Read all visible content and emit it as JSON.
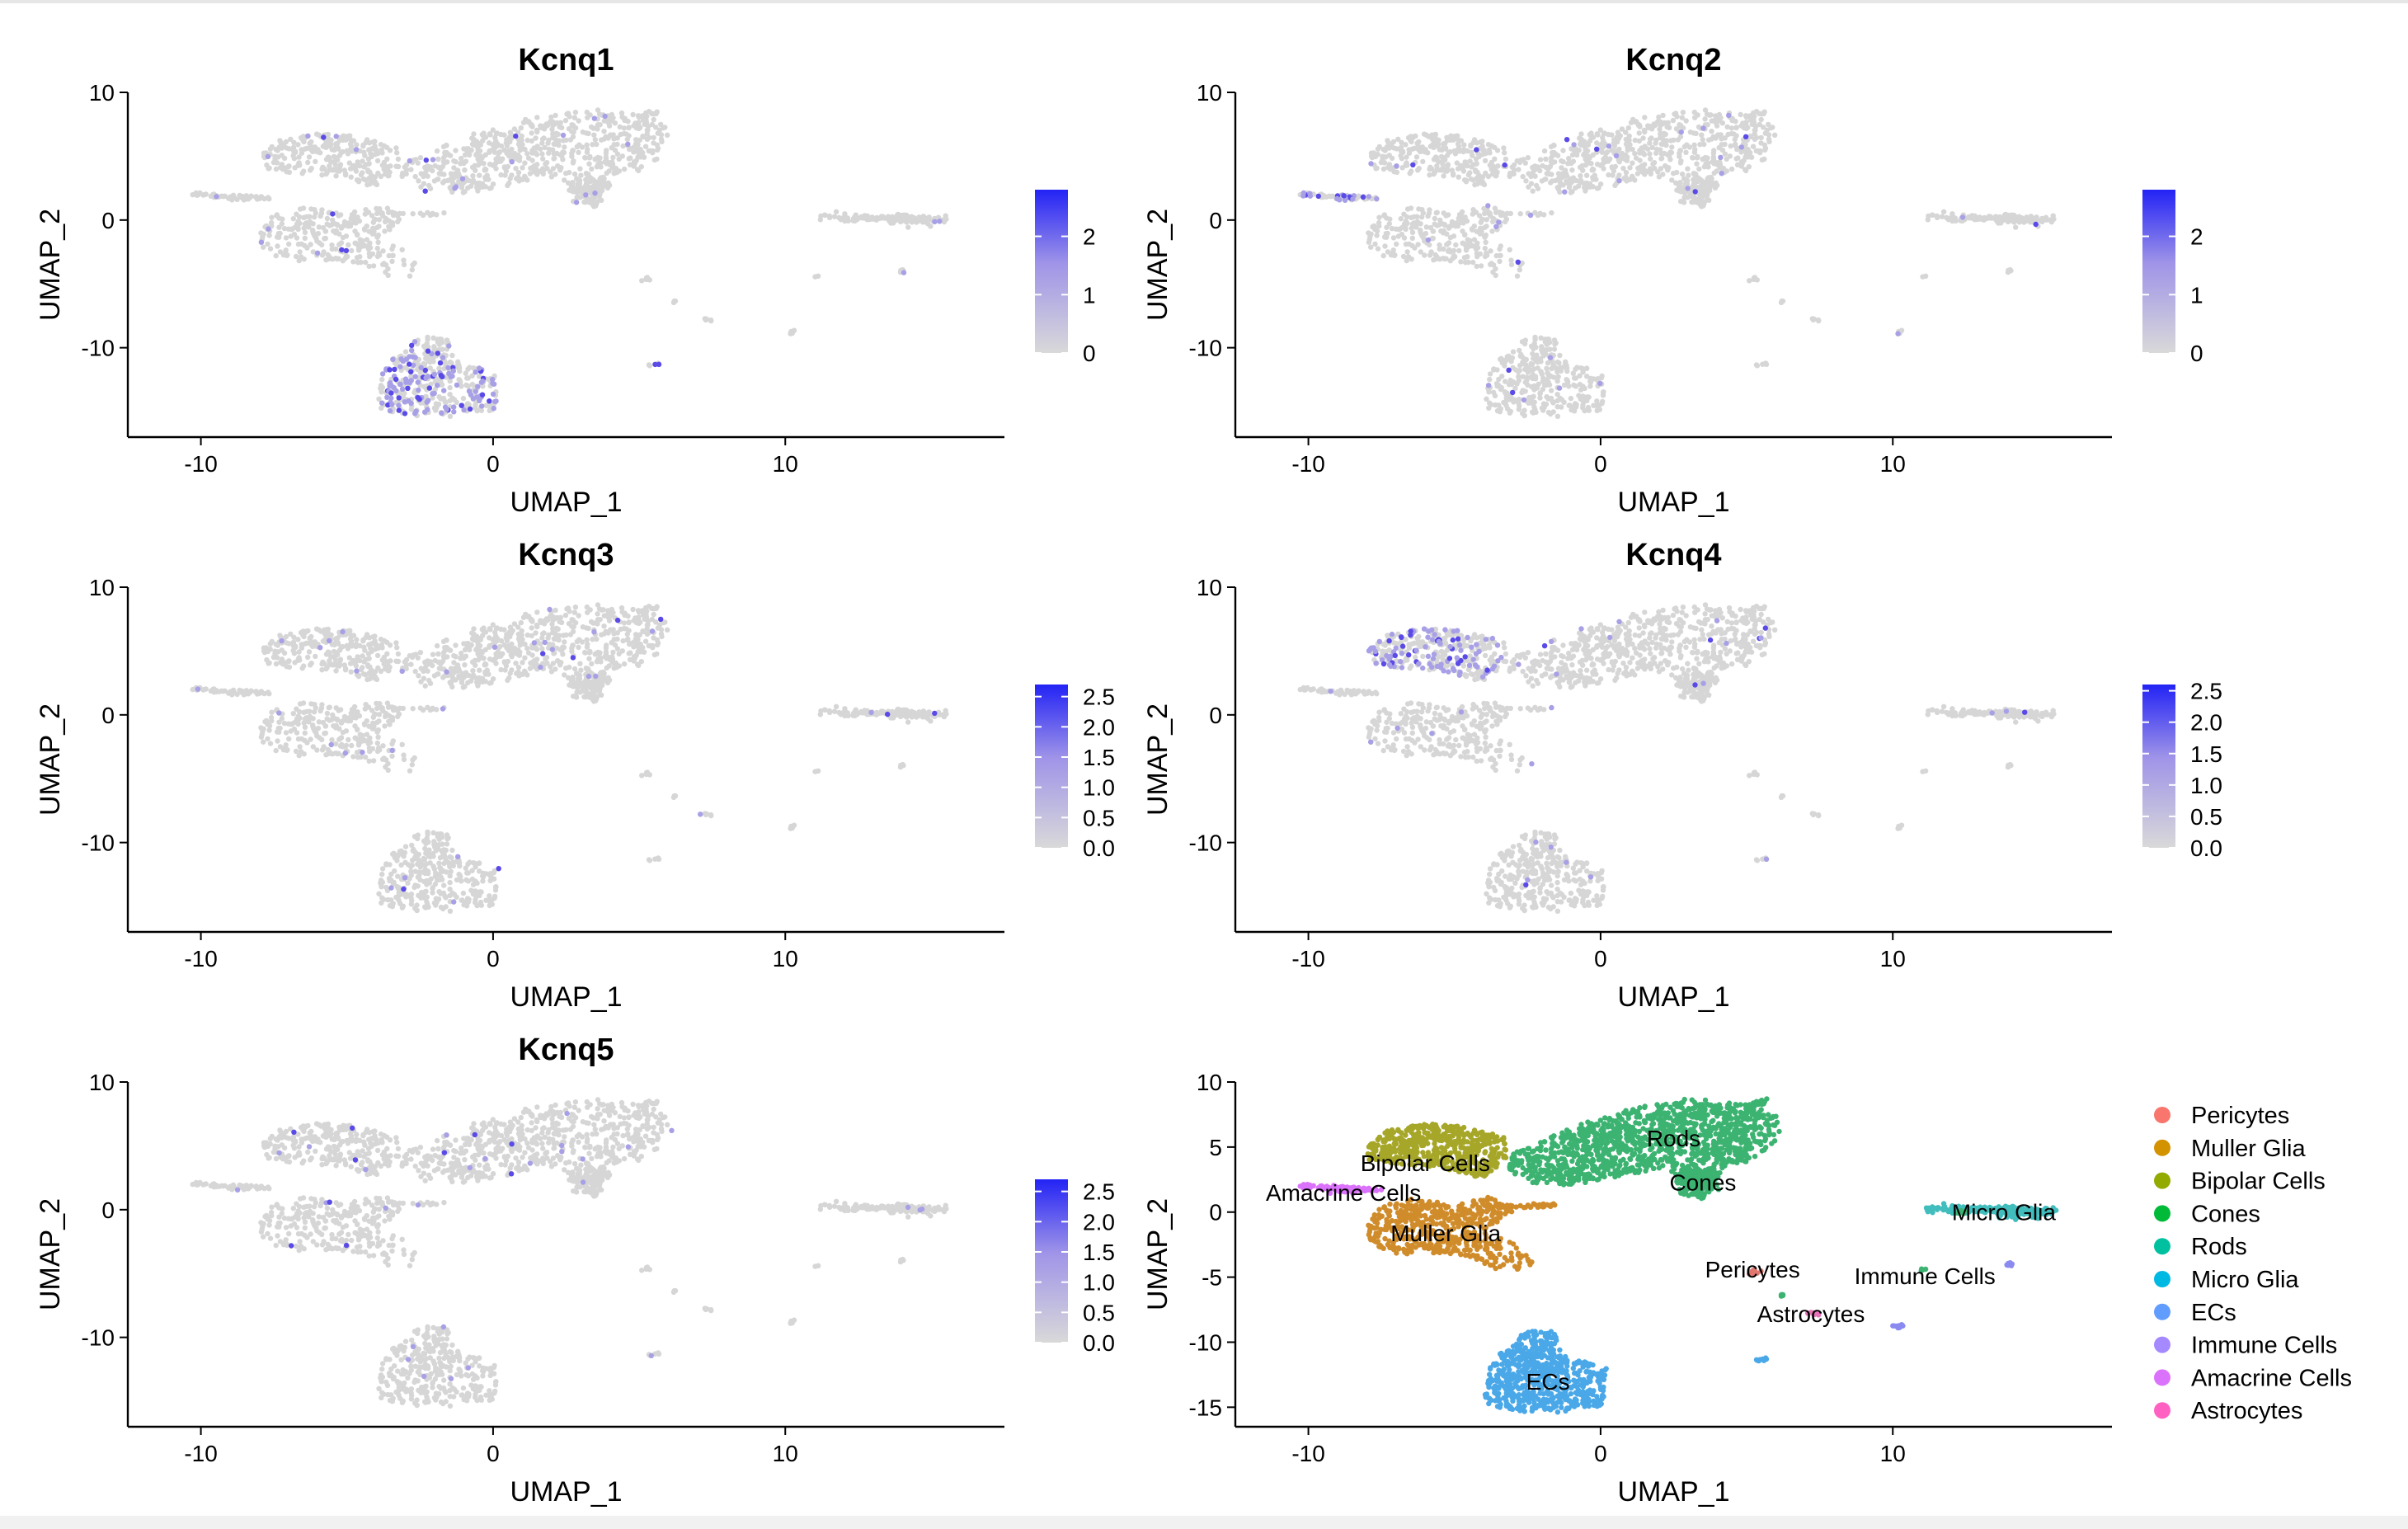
{
  "panels": [
    {
      "title": "Kcnq1",
      "xlabel": "UMAP_1",
      "ylabel": "UMAP_2",
      "xticks": [
        -10,
        0,
        10
      ],
      "yticks": [
        -10,
        0,
        10
      ],
      "colorbar": {
        "ticks": [
          "0",
          "1",
          "2"
        ],
        "tick_values": [
          0,
          1,
          2
        ],
        "max": 2.8
      },
      "highlight_region": "ECs"
    },
    {
      "title": "Kcnq2",
      "xlabel": "UMAP_1",
      "ylabel": "UMAP_2",
      "xticks": [
        -10,
        0,
        10
      ],
      "yticks": [
        -10,
        0,
        10
      ],
      "colorbar": {
        "ticks": [
          "0",
          "1",
          "2"
        ],
        "tick_values": [
          0,
          1,
          2
        ],
        "max": 2.8
      },
      "highlight_region": "Amacrine"
    },
    {
      "title": "Kcnq3",
      "xlabel": "UMAP_1",
      "ylabel": "UMAP_2",
      "xticks": [
        -10,
        0,
        10
      ],
      "yticks": [
        -10,
        0,
        10
      ],
      "colorbar": {
        "ticks": [
          "0.0",
          "0.5",
          "1.0",
          "1.5",
          "2.0",
          "2.5"
        ],
        "tick_values": [
          0,
          0.5,
          1,
          1.5,
          2,
          2.5
        ],
        "max": 2.7
      },
      "highlight_region": "none"
    },
    {
      "title": "Kcnq4",
      "xlabel": "UMAP_1",
      "ylabel": "UMAP_2",
      "xticks": [
        -10,
        0,
        10
      ],
      "yticks": [
        -10,
        0,
        10
      ],
      "colorbar": {
        "ticks": [
          "0.0",
          "0.5",
          "1.0",
          "1.5",
          "2.0",
          "2.5"
        ],
        "tick_values": [
          0,
          0.5,
          1,
          1.5,
          2,
          2.5
        ],
        "max": 2.6
      },
      "highlight_region": "Bipolar"
    },
    {
      "title": "Kcnq5",
      "xlabel": "UMAP_1",
      "ylabel": "UMAP_2",
      "xticks": [
        -10,
        0,
        10
      ],
      "yticks": [
        -10,
        0,
        10
      ],
      "colorbar": {
        "ticks": [
          "0.0",
          "0.5",
          "1.0",
          "1.5",
          "2.0",
          "2.5"
        ],
        "tick_values": [
          0,
          0.5,
          1,
          1.5,
          2,
          2.5
        ],
        "max": 2.7
      },
      "highlight_region": "none"
    }
  ],
  "cluster_panel": {
    "xlabel": "UMAP_1",
    "ylabel": "UMAP_2",
    "xticks": [
      -10,
      0,
      10
    ],
    "yticks": [
      -15,
      -10,
      -5,
      0,
      5,
      10
    ]
  },
  "legend": [
    {
      "label": "Pericytes",
      "color": "#F8766D"
    },
    {
      "label": "Muller Glia",
      "color": "#D39200"
    },
    {
      "label": "Bipolar Cells",
      "color": "#93AA00"
    },
    {
      "label": "Cones",
      "color": "#00BA38"
    },
    {
      "label": "Rods",
      "color": "#00C19F"
    },
    {
      "label": "Micro Glia",
      "color": "#00B9E3"
    },
    {
      "label": "ECs",
      "color": "#619CFF"
    },
    {
      "label": "Immune Cells",
      "color": "#A58AFF"
    },
    {
      "label": "Amacrine Cells",
      "color": "#DB72FB"
    },
    {
      "label": "Astrocytes",
      "color": "#FF61C3"
    }
  ],
  "chart_data": {
    "type": "scatter",
    "description_of_axes": "UMAP embedding",
    "xlim": [
      -12.5,
      17.5
    ],
    "ylim_feature": [
      -17,
      10
    ],
    "ylim_cluster": [
      -16.5,
      10
    ],
    "clusters": [
      {
        "name": "Rods",
        "label": "Rods",
        "label_xy": [
          2.5,
          5.7
        ],
        "color": "#3CB371"
      },
      {
        "name": "Cones",
        "label": "Cones",
        "label_xy": [
          3.5,
          2.3
        ],
        "color": "#3CB371"
      },
      {
        "name": "Bipolar",
        "label": "Bipolar Cells",
        "label_xy": [
          -6,
          3.8
        ],
        "color": "#A6A629"
      },
      {
        "name": "Amacrine",
        "label": "Amacrine Cells",
        "label_xy": [
          -8.8,
          1.5
        ],
        "color": "#DB72FB"
      },
      {
        "name": "Muller",
        "label": "Muller Glia",
        "label_xy": [
          -5.3,
          -1.6
        ],
        "color": "#D08C2A"
      },
      {
        "name": "MicroGlia",
        "label": "Micro Glia",
        "label_xy": [
          13.8,
          0.0
        ],
        "color": "#42BDBD"
      },
      {
        "name": "Pericytes",
        "label": "Pericytes",
        "label_xy": [
          5.2,
          -4.4
        ],
        "color": "#E07870"
      },
      {
        "name": "Immune",
        "label": "Immune Cells",
        "label_xy": [
          11.1,
          -4.9
        ],
        "color": "#8A8AF0"
      },
      {
        "name": "Astrocytes",
        "label": "Astrocytes",
        "label_xy": [
          7.2,
          -7.8
        ],
        "color": "#E872B8"
      },
      {
        "name": "ECs",
        "label": "ECs",
        "label_xy": [
          -1.8,
          -13.0
        ],
        "color": "#4AA8E8"
      }
    ]
  }
}
